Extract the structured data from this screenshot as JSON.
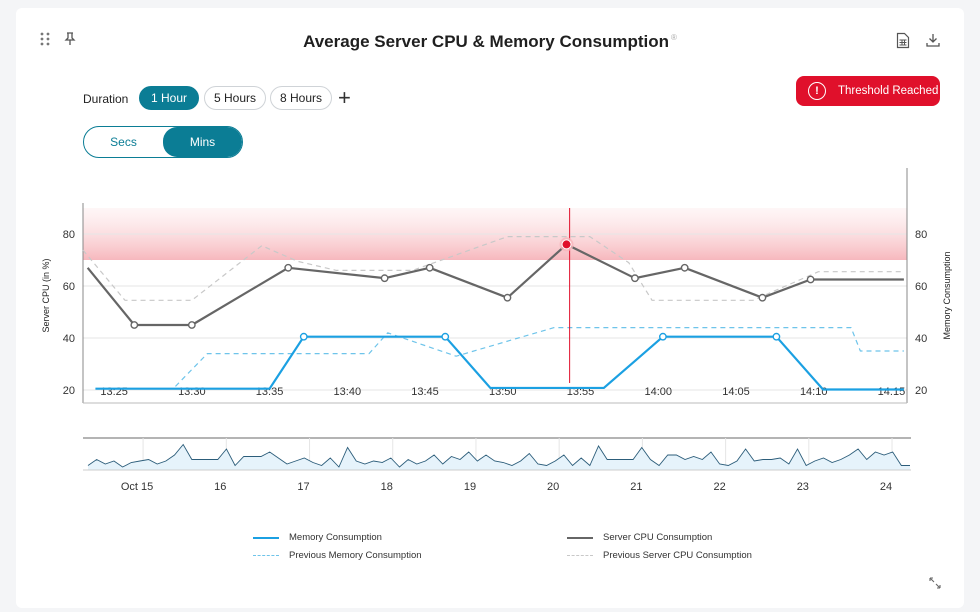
{
  "header": {
    "title": "Average Server CPU & Memory Consumption",
    "title_mark": "®",
    "icons": [
      "drag-handle-icon",
      "pin-icon",
      "spreadsheet-icon",
      "download-icon"
    ]
  },
  "controls": {
    "duration_label": "Duration",
    "durations": [
      {
        "label": "1 Hour",
        "active": true
      },
      {
        "label": "5 Hours",
        "active": false
      },
      {
        "label": "8 Hours",
        "active": false
      }
    ],
    "add_label": "+",
    "units": [
      {
        "label": "Secs",
        "active": false
      },
      {
        "label": "Mins",
        "active": true
      }
    ],
    "threshold_label": "Threshold Reached",
    "threshold_icon": "!"
  },
  "colors": {
    "memory": "#1ba0e2",
    "cpu": "#666666",
    "prev_memory": "#6ec4ea",
    "prev_cpu": "#c8c8c8",
    "threshold": "#e0102b",
    "accent": "#0b7d95"
  },
  "chart_data": [
    {
      "type": "line",
      "title": "Average Server CPU & Memory Consumption",
      "ylabel": "Server CPU (in %)",
      "y2label": "Memory Consumption",
      "ylim": [
        15,
        90
      ],
      "yticks": [
        20,
        40,
        60,
        80
      ],
      "xlim": [
        23,
        76
      ],
      "x_ticks": [
        {
          "v": 25,
          "label": "13:25"
        },
        {
          "v": 30,
          "label": "13:30"
        },
        {
          "v": 35,
          "label": "13:35"
        },
        {
          "v": 40,
          "label": "13:40"
        },
        {
          "v": 45,
          "label": "13:45"
        },
        {
          "v": 50,
          "label": "13:50"
        },
        {
          "v": 55,
          "label": "13:55"
        },
        {
          "v": 60,
          "label": "14:00"
        },
        {
          "v": 65,
          "label": "14:05"
        },
        {
          "v": 70,
          "label": "14:10"
        },
        {
          "v": 75,
          "label": "14:15"
        }
      ],
      "threshold_band": [
        70,
        90
      ],
      "cursor_x": 54.3,
      "grid": true,
      "legend_position": "bottom",
      "series": [
        {
          "name": "Memory Consumption",
          "style": "solid",
          "color_key": "memory",
          "x": [
            23.8,
            35,
            37.2,
            46.3,
            49.2,
            56.5,
            60.3,
            67.6,
            70.6,
            75.8
          ],
          "y": [
            20.5,
            20.5,
            40.5,
            40.5,
            20.8,
            20.8,
            40.5,
            40.5,
            20.2,
            20.2
          ],
          "markers": [
            37.2,
            46.3,
            60.3,
            67.6
          ]
        },
        {
          "name": "Server CPU Consumption",
          "style": "solid",
          "color_key": "cpu",
          "x": [
            23.3,
            26.3,
            30,
            36.2,
            42.4,
            45.3,
            50.3,
            54.1,
            58.5,
            61.7,
            66.7,
            69.8,
            75.8
          ],
          "y": [
            67,
            45,
            45,
            67,
            63,
            67,
            55.5,
            76,
            63,
            67,
            55.5,
            62.5,
            62.5
          ],
          "markers": [
            26.3,
            30,
            36.2,
            42.4,
            45.3,
            50.3,
            54.1,
            58.5,
            61.7,
            66.7,
            69.8
          ],
          "highlight": 54.1
        },
        {
          "name": "Previous Memory Consumption",
          "style": "dashed",
          "color_key": "prev_memory",
          "x": [
            23.8,
            28.8,
            31,
            41.4,
            42.6,
            47,
            51,
            53.3,
            72.4,
            73,
            75.8
          ],
          "y": [
            20.5,
            20.5,
            34,
            34,
            42,
            33,
            40,
            44,
            44,
            35,
            35
          ]
        },
        {
          "name": "Previous Server CPU Consumption",
          "style": "dashed",
          "color_key": "prev_cpu",
          "x": [
            23,
            25.7,
            30,
            34.5,
            36.8,
            39.3,
            44.2,
            50.3,
            55.6,
            58.1,
            59.6,
            66.1,
            70.3,
            75.8
          ],
          "y": [
            73.8,
            54.5,
            54.5,
            75.5,
            69.5,
            66,
            66,
            79,
            79,
            69,
            54.5,
            54.5,
            65.5,
            65.5
          ]
        }
      ]
    },
    {
      "type": "area",
      "name": "navigator",
      "ylim": [
        0,
        10
      ],
      "x_ticks": [
        {
          "v": 15,
          "label": "Oct 15"
        },
        {
          "v": 16,
          "label": "16"
        },
        {
          "v": 17,
          "label": "17"
        },
        {
          "v": 18,
          "label": "18"
        },
        {
          "v": 19,
          "label": "19"
        },
        {
          "v": 20,
          "label": "20"
        },
        {
          "v": 21,
          "label": "21"
        },
        {
          "v": 22,
          "label": "22"
        },
        {
          "v": 23,
          "label": "23"
        },
        {
          "v": 24,
          "label": "24"
        }
      ],
      "xlim": [
        14.35,
        24.3
      ],
      "values": [
        1.5,
        3.5,
        2,
        3,
        1,
        2.5,
        3,
        3.5,
        2,
        3,
        5,
        8.5,
        3.5,
        3.5,
        3.5,
        3.5,
        7,
        1.5,
        4.5,
        4.5,
        4.5,
        6,
        4,
        2,
        3,
        4,
        2.5,
        1.5,
        4,
        1,
        7.5,
        3,
        2,
        3,
        2.5,
        4,
        1,
        3.5,
        2,
        3,
        5,
        2,
        4.5,
        3.5,
        6,
        3,
        5,
        3,
        2.5,
        1.5,
        3,
        5.5,
        2,
        1.5,
        3,
        5,
        1.5,
        4,
        1.5,
        8,
        3.5,
        3.5,
        3.5,
        3.5,
        7.5,
        3.5,
        1.5,
        5,
        5,
        3.5,
        4.5,
        3.5,
        6,
        2,
        1.5,
        3,
        7,
        3,
        3.5,
        3.5,
        4,
        2,
        7,
        1.5,
        3,
        4,
        2.5,
        3.5,
        5,
        7,
        3.5,
        6,
        5,
        6,
        1.5,
        1.5
      ]
    }
  ],
  "legend": [
    {
      "label": "Memory Consumption",
      "color_key": "memory",
      "style": "solid"
    },
    {
      "label": "Server CPU Consumption",
      "color_key": "cpu",
      "style": "solid"
    },
    {
      "label": "Previous Memory Consumption",
      "color_key": "prev_memory",
      "style": "dashed"
    },
    {
      "label": "Previous Server CPU Consumption",
      "color_key": "prev_cpu",
      "style": "dashed"
    }
  ]
}
